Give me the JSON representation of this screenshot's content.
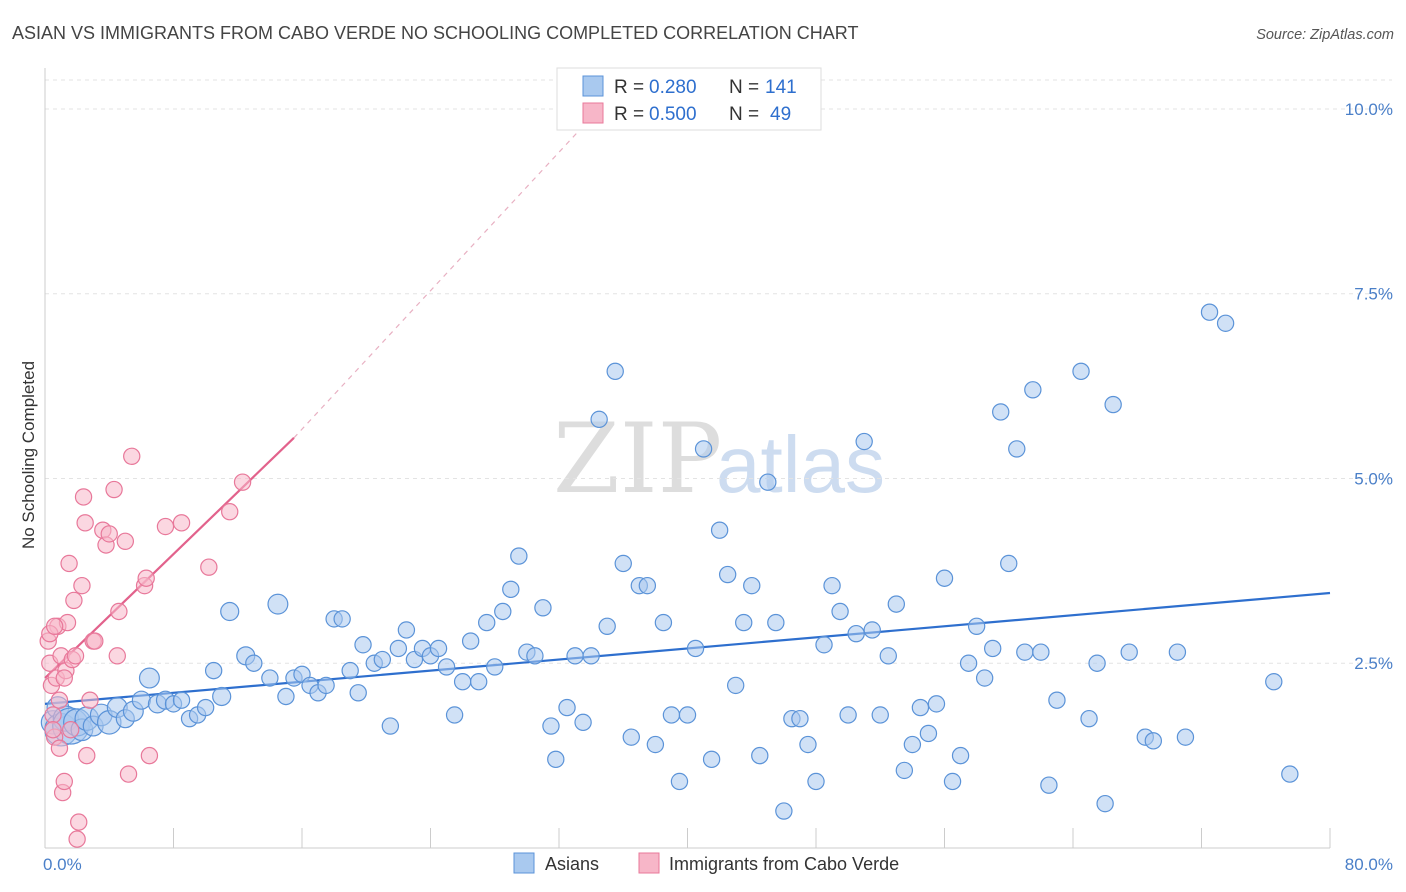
{
  "chart_data": {
    "type": "scatter",
    "title": "ASIAN VS IMMIGRANTS FROM CABO VERDE NO SCHOOLING COMPLETED CORRELATION CHART",
    "source": "Source: ZipAtlas.com",
    "ylabel": "No Schooling Completed",
    "xlabel": "",
    "xlim": [
      0,
      80
    ],
    "ylim": [
      0,
      10.5
    ],
    "x_tick_labels": [
      "0.0%",
      "80.0%"
    ],
    "y_ticks": [
      {
        "value": 2.5,
        "label": "2.5%"
      },
      {
        "value": 5.0,
        "label": "5.0%"
      },
      {
        "value": 7.5,
        "label": "7.5%"
      },
      {
        "value": 10.0,
        "label": "10.0%"
      }
    ],
    "grid": true,
    "watermark": {
      "part1": "ZIP",
      "part2": "atlas"
    },
    "legend": {
      "r_label": "R =",
      "n_label": "N =",
      "entries": [
        {
          "r": "0.280",
          "n": "141"
        },
        {
          "r": "0.500",
          "n": "49"
        }
      ]
    },
    "bottom_legend": [
      "Asians",
      "Immigrants from Cabo Verde"
    ],
    "colors": {
      "blue_fill": "#a9c9ef",
      "blue_stroke": "#5b93d8",
      "blue_line": "#2e6fce",
      "pink_fill": "#f7b6c8",
      "pink_stroke": "#e8789a",
      "pink_line": "#e2628c",
      "tick_text": "#4a7fc8"
    },
    "series": [
      {
        "name": "Asians",
        "trend": {
          "x0": 0,
          "y0": 1.95,
          "x1": 80,
          "y1": 3.45
        },
        "points": [
          [
            0.5,
            1.7,
            1.3
          ],
          [
            0.8,
            1.9,
            1.2
          ],
          [
            1.0,
            1.6,
            1.8
          ],
          [
            1.3,
            1.75,
            1.4
          ],
          [
            1.6,
            1.65,
            2.0
          ],
          [
            2.0,
            1.7,
            1.5
          ],
          [
            2.3,
            1.6,
            1.2
          ],
          [
            2.6,
            1.75,
            1.3
          ],
          [
            3.0,
            1.65,
            1.1
          ],
          [
            3.5,
            1.8,
            1.2
          ],
          [
            4.0,
            1.7,
            1.3
          ],
          [
            4.5,
            1.9,
            1.1
          ],
          [
            5.0,
            1.75,
            1.0
          ],
          [
            5.5,
            1.85,
            1.1
          ],
          [
            6.0,
            2.0,
            1.0
          ],
          [
            6.5,
            2.3,
            1.1
          ],
          [
            7.0,
            1.95,
            1.0
          ],
          [
            7.5,
            2.0,
            1.0
          ],
          [
            8.0,
            1.95,
            0.9
          ],
          [
            8.5,
            2.0,
            0.9
          ],
          [
            9.0,
            1.75,
            0.9
          ],
          [
            9.5,
            1.8,
            0.9
          ],
          [
            10.0,
            1.9,
            0.9
          ],
          [
            10.5,
            2.4,
            0.9
          ],
          [
            11.0,
            2.05,
            1.0
          ],
          [
            11.5,
            3.2,
            1.0
          ],
          [
            12.5,
            2.6,
            1.0
          ],
          [
            13.0,
            2.5,
            0.9
          ],
          [
            14.0,
            2.3,
            0.9
          ],
          [
            14.5,
            3.3,
            1.1
          ],
          [
            15.0,
            2.05,
            0.9
          ],
          [
            15.5,
            2.3,
            0.9
          ],
          [
            16.0,
            2.35,
            0.9
          ],
          [
            16.5,
            2.2,
            0.9
          ],
          [
            17.0,
            2.1,
            0.9
          ],
          [
            17.5,
            2.2,
            0.9
          ],
          [
            18.0,
            3.1,
            0.9
          ],
          [
            18.5,
            3.1,
            0.9
          ],
          [
            19.0,
            2.4,
            0.9
          ],
          [
            19.5,
            2.1,
            0.9
          ],
          [
            19.8,
            2.75,
            0.9
          ],
          [
            20.5,
            2.5,
            0.9
          ],
          [
            21.0,
            2.55,
            0.9
          ],
          [
            21.5,
            1.65,
            0.9
          ],
          [
            22.0,
            2.7,
            0.9
          ],
          [
            22.5,
            2.95,
            0.9
          ],
          [
            23.0,
            2.55,
            0.9
          ],
          [
            23.5,
            2.7,
            0.9
          ],
          [
            24.0,
            2.6,
            0.9
          ],
          [
            24.5,
            2.7,
            0.9
          ],
          [
            25.0,
            2.45,
            0.9
          ],
          [
            25.5,
            1.8,
            0.9
          ],
          [
            26.0,
            2.25,
            0.9
          ],
          [
            26.5,
            2.8,
            0.9
          ],
          [
            27.0,
            2.25,
            0.9
          ],
          [
            27.5,
            3.05,
            0.9
          ],
          [
            28.0,
            2.45,
            0.9
          ],
          [
            28.5,
            3.2,
            0.9
          ],
          [
            29.0,
            3.5,
            0.9
          ],
          [
            29.5,
            3.95,
            0.9
          ],
          [
            30.0,
            2.65,
            0.9
          ],
          [
            30.5,
            2.6,
            0.9
          ],
          [
            31.0,
            3.25,
            0.9
          ],
          [
            31.5,
            1.65,
            0.9
          ],
          [
            31.8,
            1.2,
            0.9
          ],
          [
            32.5,
            1.9,
            0.9
          ],
          [
            33.0,
            2.6,
            0.9
          ],
          [
            33.5,
            1.7,
            0.9
          ],
          [
            34.0,
            2.6,
            0.9
          ],
          [
            34.5,
            5.8,
            0.9
          ],
          [
            35.0,
            3.0,
            0.9
          ],
          [
            35.5,
            6.45,
            0.9
          ],
          [
            36.0,
            3.85,
            0.9
          ],
          [
            36.5,
            1.5,
            0.9
          ],
          [
            37.0,
            3.55,
            0.9
          ],
          [
            37.5,
            3.55,
            0.9
          ],
          [
            38.0,
            1.4,
            0.9
          ],
          [
            38.5,
            3.05,
            0.9
          ],
          [
            39.0,
            1.8,
            0.9
          ],
          [
            39.5,
            0.9,
            0.9
          ],
          [
            40.0,
            1.8,
            0.9
          ],
          [
            40.5,
            2.7,
            0.9
          ],
          [
            41.0,
            5.4,
            0.9
          ],
          [
            41.5,
            1.2,
            0.9
          ],
          [
            42.0,
            4.3,
            0.9
          ],
          [
            42.5,
            3.7,
            0.9
          ],
          [
            43.0,
            2.2,
            0.9
          ],
          [
            43.5,
            3.05,
            0.9
          ],
          [
            44.0,
            3.55,
            0.9
          ],
          [
            44.5,
            1.25,
            0.9
          ],
          [
            45.0,
            4.95,
            0.9
          ],
          [
            45.5,
            3.05,
            0.9
          ],
          [
            46.0,
            0.5,
            0.9
          ],
          [
            46.5,
            1.75,
            0.9
          ],
          [
            47.0,
            1.75,
            0.9
          ],
          [
            47.5,
            1.4,
            0.9
          ],
          [
            48.0,
            0.9,
            0.9
          ],
          [
            48.5,
            2.75,
            0.9
          ],
          [
            49.0,
            3.55,
            0.9
          ],
          [
            49.5,
            3.2,
            0.9
          ],
          [
            50.0,
            1.8,
            0.9
          ],
          [
            50.5,
            2.9,
            0.9
          ],
          [
            51.0,
            5.5,
            0.9
          ],
          [
            51.5,
            2.95,
            0.9
          ],
          [
            52.0,
            1.8,
            0.9
          ],
          [
            52.5,
            2.6,
            0.9
          ],
          [
            53.0,
            3.3,
            0.9
          ],
          [
            53.5,
            1.05,
            0.9
          ],
          [
            54.0,
            1.4,
            0.9
          ],
          [
            54.5,
            1.9,
            0.9
          ],
          [
            55.0,
            1.55,
            0.9
          ],
          [
            55.5,
            1.95,
            0.9
          ],
          [
            56.0,
            3.65,
            0.9
          ],
          [
            56.5,
            0.9,
            0.9
          ],
          [
            57.0,
            1.25,
            0.9
          ],
          [
            57.5,
            2.5,
            0.9
          ],
          [
            58.0,
            3.0,
            0.9
          ],
          [
            58.5,
            2.3,
            0.9
          ],
          [
            59.0,
            2.7,
            0.9
          ],
          [
            59.5,
            5.9,
            0.9
          ],
          [
            60.0,
            3.85,
            0.9
          ],
          [
            60.5,
            5.4,
            0.9
          ],
          [
            61.0,
            2.65,
            0.9
          ],
          [
            61.5,
            6.2,
            0.9
          ],
          [
            62.0,
            2.65,
            0.9
          ],
          [
            62.5,
            0.85,
            0.9
          ],
          [
            63.0,
            2.0,
            0.9
          ],
          [
            64.5,
            6.45,
            0.9
          ],
          [
            65.0,
            1.75,
            0.9
          ],
          [
            65.5,
            2.5,
            0.9
          ],
          [
            66.0,
            0.6,
            0.9
          ],
          [
            66.5,
            6.0,
            0.9
          ],
          [
            67.5,
            2.65,
            0.9
          ],
          [
            68.5,
            1.5,
            0.9
          ],
          [
            69.0,
            1.45,
            0.9
          ],
          [
            70.5,
            2.65,
            0.9
          ],
          [
            71.0,
            1.5,
            0.9
          ],
          [
            72.5,
            7.25,
            0.9
          ],
          [
            73.5,
            7.1,
            0.9
          ],
          [
            76.5,
            2.25,
            0.9
          ],
          [
            77.5,
            1.0,
            0.9
          ]
        ]
      },
      {
        "name": "Immigrants from Cabo Verde",
        "trend": {
          "x0": 0,
          "y0": 2.3,
          "x1": 15.5,
          "y1": 5.55
        },
        "trend_dashed_to": {
          "x": 34.5,
          "y": 10.0
        },
        "points": [
          [
            0.2,
            2.8,
            0.9
          ],
          [
            0.3,
            2.5,
            0.9
          ],
          [
            0.4,
            2.2,
            0.9
          ],
          [
            0.5,
            1.8,
            0.9
          ],
          [
            0.6,
            1.5,
            0.9
          ],
          [
            0.7,
            2.3,
            0.9
          ],
          [
            0.8,
            3.0,
            0.9
          ],
          [
            0.9,
            1.35,
            0.9
          ],
          [
            1.0,
            2.6,
            0.9
          ],
          [
            1.1,
            0.75,
            0.9
          ],
          [
            1.2,
            0.9,
            0.9
          ],
          [
            1.3,
            2.4,
            0.9
          ],
          [
            1.4,
            3.05,
            0.9
          ],
          [
            1.5,
            3.85,
            0.9
          ],
          [
            1.7,
            2.55,
            0.9
          ],
          [
            1.8,
            3.35,
            0.9
          ],
          [
            1.9,
            2.6,
            0.9
          ],
          [
            2.0,
            0.12,
            0.9
          ],
          [
            2.1,
            0.35,
            0.9
          ],
          [
            2.3,
            3.55,
            0.9
          ],
          [
            2.4,
            4.75,
            0.9
          ],
          [
            2.5,
            4.4,
            0.9
          ],
          [
            2.6,
            1.25,
            0.9
          ],
          [
            2.8,
            2.0,
            0.9
          ],
          [
            3.0,
            2.8,
            0.9
          ],
          [
            3.1,
            2.8,
            0.9
          ],
          [
            3.6,
            4.3,
            0.9
          ],
          [
            3.8,
            4.1,
            0.9
          ],
          [
            4.0,
            4.25,
            0.9
          ],
          [
            4.3,
            4.85,
            0.9
          ],
          [
            4.5,
            2.6,
            0.9
          ],
          [
            4.6,
            3.2,
            0.9
          ],
          [
            5.0,
            4.15,
            0.9
          ],
          [
            5.2,
            1.0,
            0.9
          ],
          [
            5.4,
            5.3,
            0.9
          ],
          [
            6.2,
            3.55,
            0.9
          ],
          [
            6.3,
            3.65,
            0.9
          ],
          [
            6.5,
            1.25,
            0.9
          ],
          [
            7.5,
            4.35,
            0.9
          ],
          [
            8.5,
            4.4,
            0.9
          ],
          [
            10.2,
            3.8,
            0.9
          ],
          [
            11.5,
            4.55,
            0.9
          ],
          [
            12.3,
            4.95,
            0.9
          ],
          [
            0.5,
            1.6,
            0.9
          ],
          [
            0.9,
            2.0,
            0.9
          ],
          [
            1.6,
            1.6,
            0.9
          ],
          [
            0.3,
            2.9,
            0.9
          ],
          [
            0.6,
            3.0,
            0.9
          ],
          [
            1.2,
            2.3,
            0.9
          ]
        ]
      }
    ]
  }
}
